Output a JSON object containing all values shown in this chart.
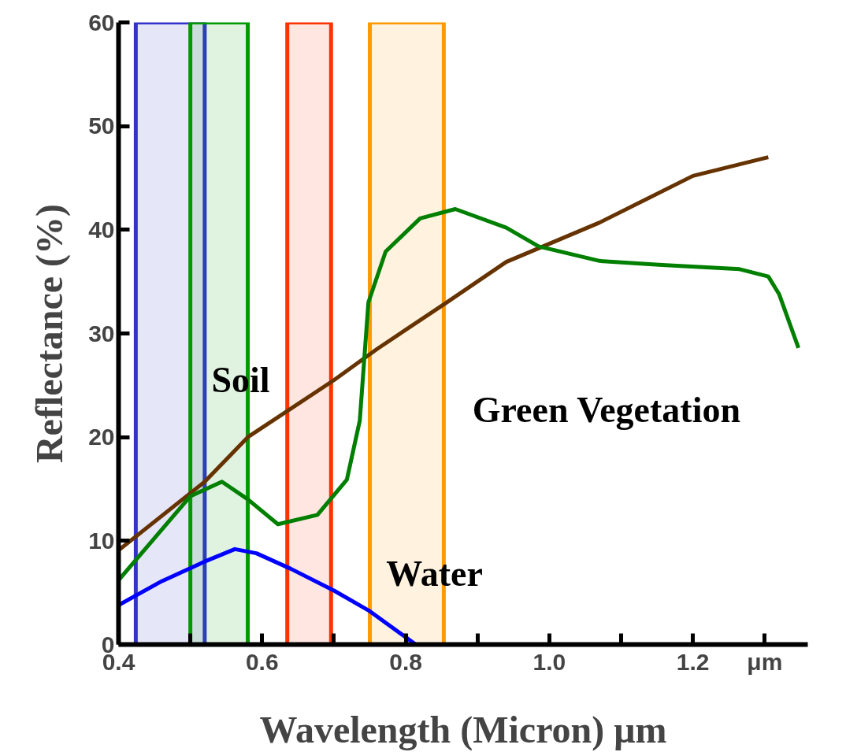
{
  "chart_data": {
    "type": "line",
    "xlabel": "Wavelength (Micron) μm",
    "ylabel": "Reflectance (%)",
    "xlim": [
      0.4,
      1.36
    ],
    "ylim": [
      0,
      60
    ],
    "xticks": [
      0.4,
      {
        "value": 0.5,
        "label": null
      },
      0.6,
      {
        "value": 0.7,
        "label": null
      },
      0.8,
      {
        "value": 0.9,
        "label": null
      },
      {
        "value": 1.0,
        "label": "1.0"
      },
      {
        "value": 1.1,
        "label": null
      },
      1.2,
      {
        "value": 1.3,
        "label": "μm"
      }
    ],
    "yticks": [
      0,
      10,
      20,
      30,
      40,
      50,
      60
    ],
    "grid": false,
    "marker": "none",
    "line_style": "solid",
    "series": [
      {
        "name": "Soil",
        "color": "#663300",
        "x": [
          0.4,
          0.52,
          0.58,
          0.7,
          0.76,
          0.855,
          0.94,
          1.07,
          1.2,
          1.305
        ],
        "values": [
          9.1,
          15.7,
          20.0,
          25.5,
          28.5,
          32.9,
          36.9,
          40.7,
          45.2,
          47.0
        ]
      },
      {
        "name": "Green Vegetation",
        "color": "#007f00",
        "x": [
          0.4,
          0.5,
          0.544,
          0.58,
          0.622,
          0.677,
          0.718,
          0.736,
          0.748,
          0.772,
          0.82,
          0.869,
          0.94,
          0.985,
          1.07,
          1.157,
          1.265,
          1.305,
          1.32,
          1.347
        ],
        "values": [
          6.2,
          14.3,
          15.7,
          14.0,
          11.6,
          12.5,
          15.9,
          21.6,
          33.0,
          37.9,
          41.1,
          42.0,
          40.2,
          38.4,
          37.0,
          36.6,
          36.2,
          35.5,
          33.8,
          28.6
        ]
      },
      {
        "name": "Water",
        "color": "#0000ff",
        "x": [
          0.4,
          0.46,
          0.52,
          0.562,
          0.592,
          0.64,
          0.7,
          0.748,
          0.814
        ],
        "values": [
          3.8,
          6.1,
          8.0,
          9.2,
          8.8,
          7.3,
          5.2,
          3.3,
          0
        ]
      }
    ],
    "bands": [
      {
        "axis": "x",
        "from": 0.424,
        "to": 0.52,
        "color": "#3333cc"
      },
      {
        "axis": "x",
        "from": 0.5,
        "to": 0.58,
        "color": "#009900"
      },
      {
        "axis": "x",
        "from": 0.635,
        "to": 0.696,
        "color": "#ff3300"
      },
      {
        "axis": "x",
        "from": 0.75,
        "to": 0.853,
        "color": "#ff9900"
      }
    ]
  }
}
